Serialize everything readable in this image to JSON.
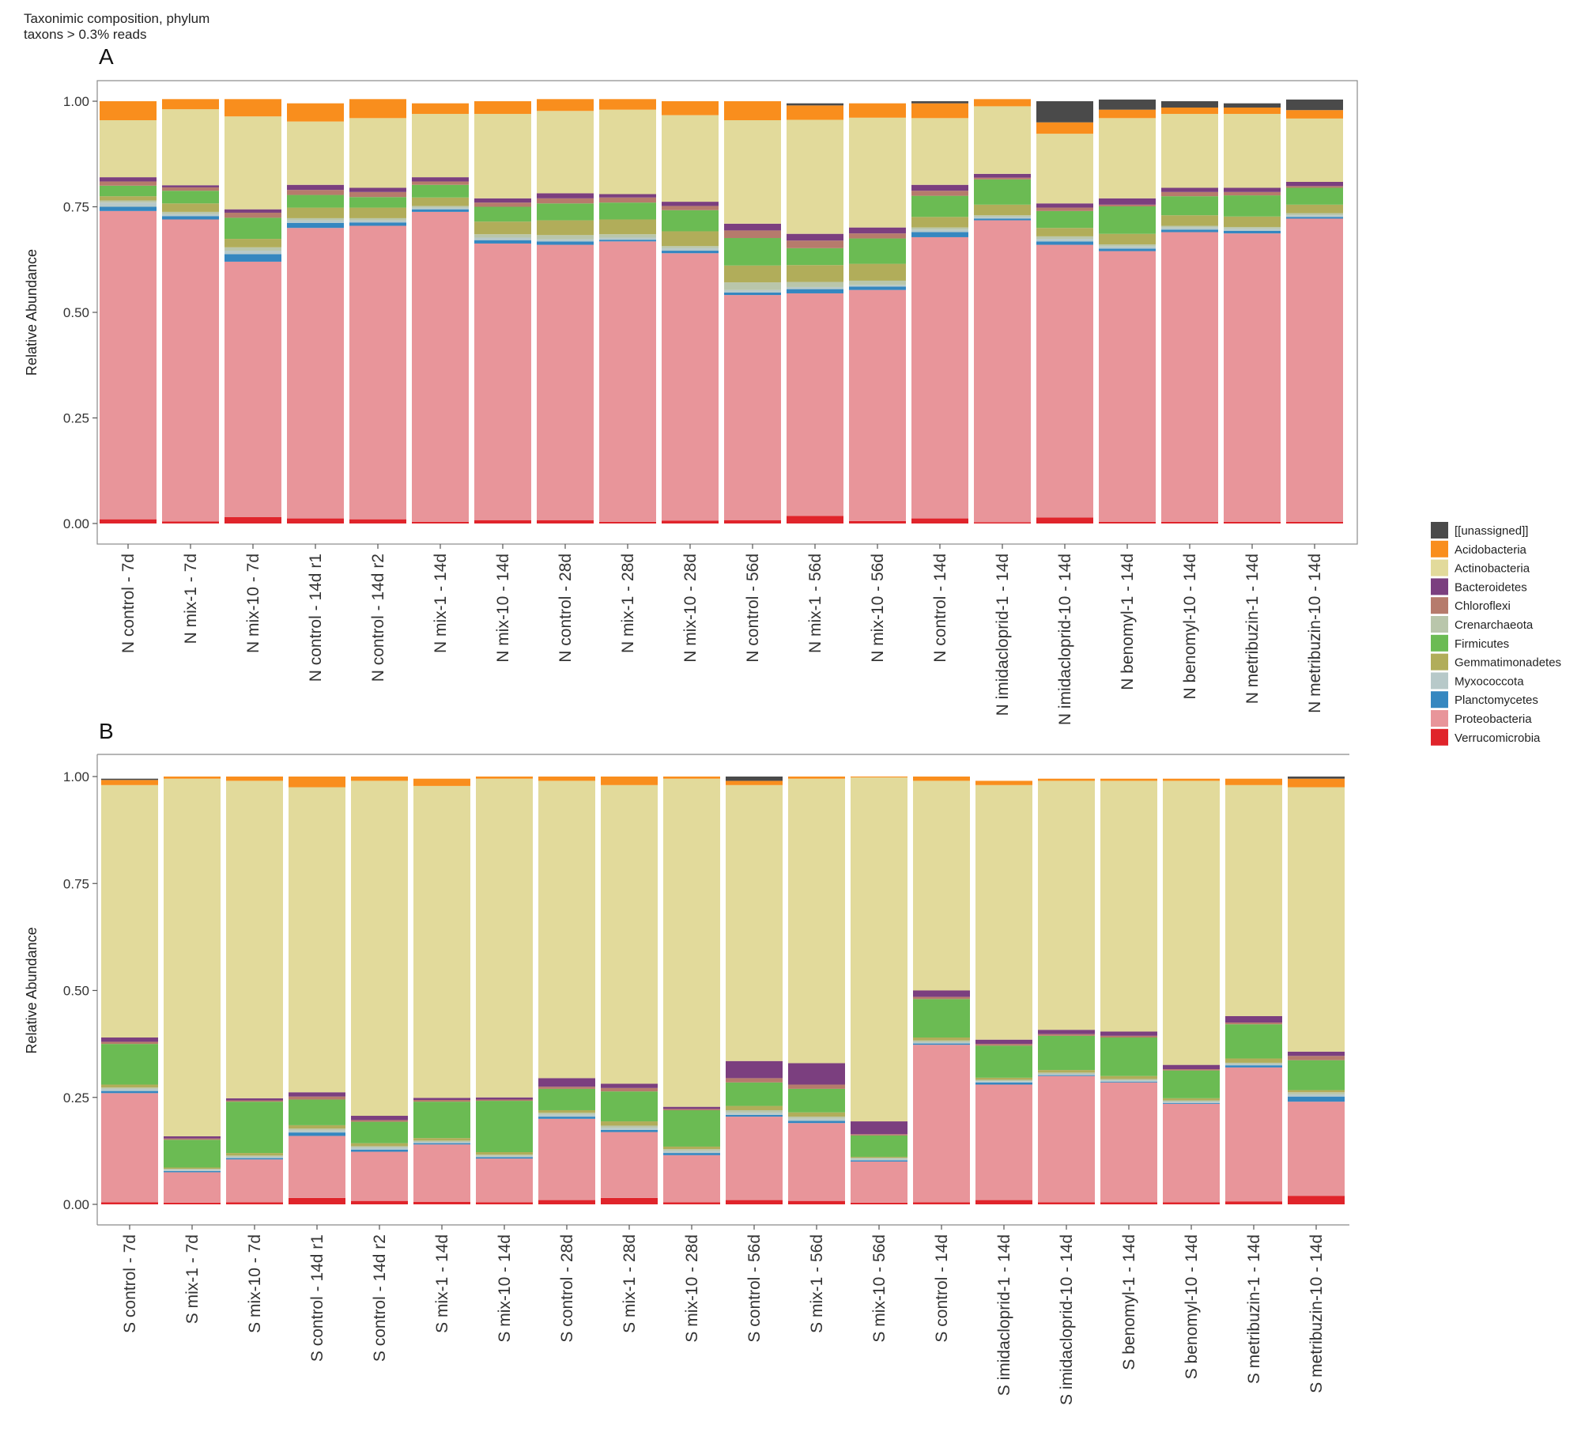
{
  "header": {
    "line1": "Taxonimic composition, phylum",
    "line2": "taxons > 0.3% reads"
  },
  "chart_data": [
    {
      "type": "bar",
      "stacked": true,
      "panel_label": "A",
      "xlabel": "",
      "ylabel": "Relative Abundance",
      "ylim": [
        0,
        1
      ],
      "yticks": [
        "0.00",
        "0.25",
        "0.50",
        "0.75",
        "1.00"
      ],
      "grid": false,
      "legend_position": "right",
      "categories": [
        "N control - 7d",
        "N mix-1 - 7d",
        "N mix-10 - 7d",
        "N control - 14d r1",
        "N control - 14d r2",
        "N mix-1 - 14d",
        "N mix-10 - 14d",
        "N control - 28d",
        "N mix-1 - 28d",
        "N mix-10 - 28d",
        "N control - 56d",
        "N mix-1 - 56d",
        "N mix-10 - 56d",
        "N control - 14d",
        "N imidacloprid-1 - 14d",
        "N imidacloprid-10 - 14d",
        "N benomyl-1 - 14d",
        "N benomyl-10 - 14d",
        "N metribuzin-1 - 14d",
        "N metribuzin-10 - 14d"
      ],
      "series": [
        {
          "name": "Verrucomicrobia",
          "values": [
            0.01,
            0.005,
            0.015,
            0.012,
            0.01,
            0.004,
            0.008,
            0.008,
            0.004,
            0.007,
            0.008,
            0.018,
            0.006,
            0.012,
            0.003,
            0.014,
            0.004,
            0.004,
            0.004,
            0.004
          ]
        },
        {
          "name": "Proteobacteria",
          "values": [
            0.73,
            0.715,
            0.605,
            0.688,
            0.695,
            0.734,
            0.655,
            0.652,
            0.664,
            0.633,
            0.533,
            0.527,
            0.547,
            0.666,
            0.715,
            0.646,
            0.641,
            0.686,
            0.683,
            0.718
          ]
        },
        {
          "name": "Planctomycetes",
          "values": [
            0.01,
            0.008,
            0.018,
            0.012,
            0.008,
            0.006,
            0.008,
            0.008,
            0.004,
            0.006,
            0.006,
            0.01,
            0.008,
            0.012,
            0.004,
            0.008,
            0.006,
            0.006,
            0.006,
            0.004
          ]
        },
        {
          "name": "Myxococcota",
          "values": [
            0.01,
            0.005,
            0.008,
            0.006,
            0.005,
            0.004,
            0.006,
            0.005,
            0.005,
            0.006,
            0.006,
            0.005,
            0.004,
            0.006,
            0.004,
            0.006,
            0.005,
            0.005,
            0.005,
            0.004
          ]
        },
        {
          "name": "Crenarchaeota",
          "values": [
            0.005,
            0.005,
            0.008,
            0.005,
            0.005,
            0.004,
            0.008,
            0.01,
            0.008,
            0.005,
            0.018,
            0.012,
            0.01,
            0.005,
            0.004,
            0.006,
            0.005,
            0.004,
            0.004,
            0.005
          ]
        },
        {
          "name": "Gemmatimonadetes",
          "values": [
            0.01,
            0.02,
            0.02,
            0.025,
            0.025,
            0.02,
            0.03,
            0.035,
            0.035,
            0.035,
            0.04,
            0.04,
            0.04,
            0.025,
            0.025,
            0.02,
            0.025,
            0.025,
            0.025,
            0.02
          ]
        },
        {
          "name": "Firmicutes",
          "values": [
            0.025,
            0.03,
            0.05,
            0.03,
            0.025,
            0.03,
            0.035,
            0.04,
            0.04,
            0.05,
            0.065,
            0.04,
            0.06,
            0.05,
            0.06,
            0.04,
            0.065,
            0.045,
            0.05,
            0.04
          ]
        },
        {
          "name": "Chloroflexi",
          "values": [
            0.01,
            0.008,
            0.012,
            0.012,
            0.012,
            0.008,
            0.01,
            0.012,
            0.012,
            0.01,
            0.018,
            0.018,
            0.012,
            0.012,
            0.004,
            0.008,
            0.004,
            0.01,
            0.008,
            0.004
          ]
        },
        {
          "name": "Bacteroidetes",
          "values": [
            0.01,
            0.005,
            0.008,
            0.012,
            0.01,
            0.01,
            0.01,
            0.012,
            0.008,
            0.01,
            0.016,
            0.016,
            0.014,
            0.014,
            0.009,
            0.01,
            0.015,
            0.01,
            0.01,
            0.01
          ]
        },
        {
          "name": "Actinobacteria",
          "values": [
            0.135,
            0.18,
            0.22,
            0.15,
            0.165,
            0.15,
            0.2,
            0.195,
            0.2,
            0.205,
            0.245,
            0.27,
            0.26,
            0.158,
            0.16,
            0.165,
            0.19,
            0.175,
            0.175,
            0.15
          ]
        },
        {
          "name": "Acidobacteria",
          "values": [
            0.045,
            0.024,
            0.041,
            0.043,
            0.045,
            0.025,
            0.03,
            0.028,
            0.025,
            0.033,
            0.045,
            0.034,
            0.034,
            0.035,
            0.017,
            0.027,
            0.02,
            0.015,
            0.015,
            0.02
          ]
        },
        {
          "name": "[[unassigned]]",
          "values": [
            0,
            0,
            0,
            0,
            0,
            0,
            0,
            0,
            0,
            0,
            0,
            0.005,
            0,
            0.005,
            0,
            0.05,
            0.024,
            0.015,
            0.01,
            0.025
          ]
        }
      ]
    },
    {
      "type": "bar",
      "stacked": true,
      "panel_label": "B",
      "xlabel": "",
      "ylabel": "Relative Abundance",
      "ylim": [
        0,
        1
      ],
      "yticks": [
        "0.00",
        "0.25",
        "0.50",
        "0.75",
        "1.00"
      ],
      "grid": false,
      "legend_position": "right",
      "categories": [
        "S control - 7d",
        "S mix-1 - 7d",
        "S mix-10 - 7d",
        "S control - 14d r1",
        "S control - 14d r2",
        "S mix-1 - 14d",
        "S mix-10 - 14d",
        "S control - 28d",
        "S mix-1 - 28d",
        "S mix-10 - 28d",
        "S control - 56d",
        "S mix-1 - 56d",
        "S mix-10 - 56d",
        "S control - 14d",
        "S imidacloprid-1 - 14d",
        "S imidacloprid-10 - 14d",
        "S benomyl-1 - 14d",
        "S benomyl-10 - 14d",
        "S metribuzin-1 - 14d",
        "S metribuzin-10 - 14d"
      ],
      "series": [
        {
          "name": "Verrucomicrobia",
          "values": [
            0.005,
            0.004,
            0.005,
            0.015,
            0.008,
            0.006,
            0.005,
            0.01,
            0.015,
            0.005,
            0.01,
            0.008,
            0.004,
            0.005,
            0.01,
            0.005,
            0.005,
            0.005,
            0.007,
            0.02
          ]
        },
        {
          "name": "Proteobacteria",
          "values": [
            0.255,
            0.071,
            0.1,
            0.145,
            0.115,
            0.134,
            0.102,
            0.19,
            0.154,
            0.11,
            0.195,
            0.182,
            0.096,
            0.368,
            0.27,
            0.295,
            0.28,
            0.23,
            0.313,
            0.22
          ]
        },
        {
          "name": "Planctomycetes",
          "values": [
            0.005,
            0.003,
            0.003,
            0.008,
            0.005,
            0.003,
            0.003,
            0.005,
            0.005,
            0.005,
            0.004,
            0.005,
            0.003,
            0.003,
            0.005,
            0.002,
            0.002,
            0.002,
            0.005,
            0.012
          ]
        },
        {
          "name": "Myxococcota",
          "values": [
            0.005,
            0.003,
            0.003,
            0.005,
            0.005,
            0.003,
            0.003,
            0.005,
            0.005,
            0.005,
            0.005,
            0.005,
            0.003,
            0.003,
            0.003,
            0.003,
            0.003,
            0.003,
            0.003,
            0.005
          ]
        },
        {
          "name": "Crenarchaeota",
          "values": [
            0.003,
            0.002,
            0.003,
            0.004,
            0.003,
            0.003,
            0.003,
            0.004,
            0.005,
            0.004,
            0.006,
            0.005,
            0.003,
            0.004,
            0.003,
            0.003,
            0.003,
            0.003,
            0.003,
            0.005
          ]
        },
        {
          "name": "Gemmatimonadetes",
          "values": [
            0.007,
            0.003,
            0.006,
            0.008,
            0.007,
            0.006,
            0.006,
            0.006,
            0.01,
            0.006,
            0.01,
            0.01,
            0.002,
            0.007,
            0.005,
            0.006,
            0.007,
            0.005,
            0.01,
            0.005
          ]
        },
        {
          "name": "Firmicutes",
          "values": [
            0.095,
            0.065,
            0.12,
            0.06,
            0.05,
            0.085,
            0.12,
            0.05,
            0.07,
            0.085,
            0.055,
            0.055,
            0.05,
            0.09,
            0.075,
            0.08,
            0.09,
            0.065,
            0.08,
            0.07
          ]
        },
        {
          "name": "Chloroflexi",
          "values": [
            0.005,
            0.003,
            0.003,
            0.007,
            0.004,
            0.004,
            0.003,
            0.005,
            0.008,
            0.003,
            0.01,
            0.01,
            0.003,
            0.005,
            0.004,
            0.004,
            0.004,
            0.003,
            0.004,
            0.01
          ]
        },
        {
          "name": "Bacteroidetes",
          "values": [
            0.01,
            0.005,
            0.005,
            0.01,
            0.01,
            0.005,
            0.005,
            0.02,
            0.01,
            0.005,
            0.04,
            0.05,
            0.03,
            0.015,
            0.01,
            0.01,
            0.01,
            0.01,
            0.015,
            0.01
          ]
        },
        {
          "name": "Actinobacteria",
          "values": [
            0.59,
            0.836,
            0.742,
            0.713,
            0.783,
            0.729,
            0.745,
            0.695,
            0.698,
            0.767,
            0.645,
            0.665,
            0.804,
            0.49,
            0.595,
            0.582,
            0.586,
            0.664,
            0.54,
            0.618
          ]
        },
        {
          "name": "Acidobacteria",
          "values": [
            0.012,
            0.005,
            0.01,
            0.025,
            0.01,
            0.017,
            0.005,
            0.01,
            0.02,
            0.005,
            0.01,
            0.005,
            0.002,
            0.01,
            0.01,
            0.005,
            0.005,
            0.005,
            0.015,
            0.02
          ]
        },
        {
          "name": "[[unassigned]]",
          "values": [
            0.003,
            0,
            0,
            0,
            0,
            0,
            0,
            0,
            0,
            0,
            0.01,
            0,
            0,
            0,
            0,
            0,
            0,
            0,
            0,
            0.005
          ]
        }
      ]
    }
  ],
  "legend": {
    "items": [
      {
        "name": "[[unassigned]]",
        "color": "#4a4a4a"
      },
      {
        "name": "Acidobacteria",
        "color": "#f98e1d"
      },
      {
        "name": "Actinobacteria",
        "color": "#e2da9b"
      },
      {
        "name": "Bacteroidetes",
        "color": "#7b3f7f"
      },
      {
        "name": "Chloroflexi",
        "color": "#b67b6c"
      },
      {
        "name": "Crenarchaeota",
        "color": "#b9c6ab"
      },
      {
        "name": "Firmicutes",
        "color": "#6bbb53"
      },
      {
        "name": "Gemmatimonadetes",
        "color": "#b1ad5a"
      },
      {
        "name": "Myxococcota",
        "color": "#b7c9c9"
      },
      {
        "name": "Planctomycetes",
        "color": "#3587c0"
      },
      {
        "name": "Proteobacteria",
        "color": "#e8959a"
      },
      {
        "name": "Verrucomicrobia",
        "color": "#e0242b"
      }
    ]
  }
}
